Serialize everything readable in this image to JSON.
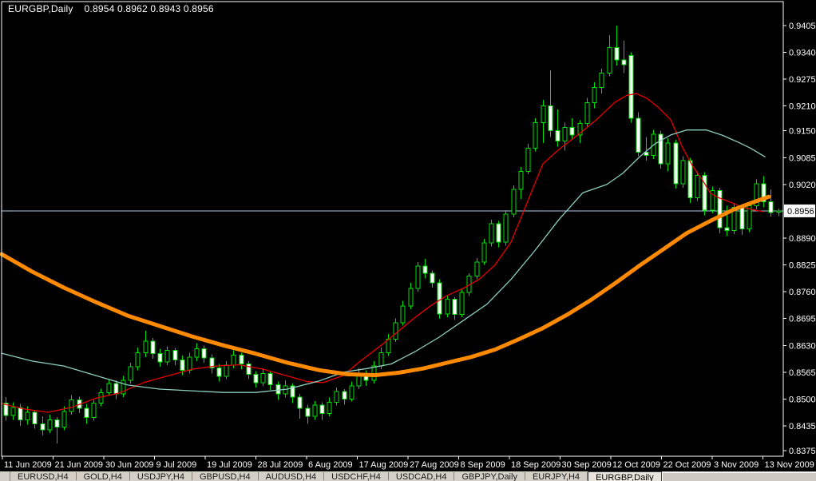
{
  "header": {
    "symbol_period": "EURGBP,Daily",
    "ohlc_quote": "0.8954 0.8962 0.8943 0.8956"
  },
  "colors": {
    "background": "#000000",
    "frame": "#FFFFFF",
    "axis_text": "#FFFFFF",
    "candle_outline": "#00E000",
    "bear_fill": "#FFFFFF",
    "bull_fill": "#000000",
    "ma_fast": "#E60000",
    "ma_mid": "#8CCFC0",
    "ma_slow": "#FF8A00",
    "current_price_line": "#ADC8E8",
    "price_flag_bg": "#FFFFFF",
    "price_flag_text": "#000000",
    "tabbar_bg": "#D4D0C8"
  },
  "y_axis": {
    "labels": [
      "0.9405",
      "0.9340",
      "0.9275",
      "0.9210",
      "0.9150",
      "0.9085",
      "0.9020",
      "0.8890",
      "0.8825",
      "0.8760",
      "0.8695",
      "0.8630",
      "0.8565",
      "0.8500",
      "0.8435",
      "0.8375"
    ],
    "current_price_label": "0.8956"
  },
  "x_axis": {
    "labels": [
      "11 Jun 2009",
      "21 Jun 2009",
      "30 Jun 2009",
      "9 Jul 2009",
      "19 Jul 2009",
      "28 Jul 2009",
      "6 Aug 2009",
      "17 Aug 2009",
      "27 Aug 2009",
      "8 Sep 2009",
      "18 Sep 2009",
      "30 Sep 2009",
      "12 Oct 2009",
      "22 Oct 2009",
      "3 Nov 2009",
      "13 Nov 2009"
    ]
  },
  "tabs": {
    "items": [
      {
        "label": "EURUSD,H4",
        "active": false
      },
      {
        "label": "GOLD,H4",
        "active": false
      },
      {
        "label": "USDJPY,H4",
        "active": false
      },
      {
        "label": "GBPUSD,H4",
        "active": false
      },
      {
        "label": "AUDUSD,H4",
        "active": false
      },
      {
        "label": "USDCHF,H4",
        "active": false
      },
      {
        "label": "USDCAD,H4",
        "active": false
      },
      {
        "label": "GBPJPY,Daily",
        "active": false
      },
      {
        "label": "EURJPY,H4",
        "active": false
      },
      {
        "label": "EURGBP,Daily",
        "active": true
      }
    ]
  },
  "chart_data": {
    "type": "candlestick",
    "symbol": "EURGBP",
    "timeframe": "Daily",
    "title": "EURGBP,Daily",
    "last_quote": {
      "open": 0.8954,
      "high": 0.8962,
      "low": 0.8943,
      "close": 0.8956
    },
    "current_price": 0.8956,
    "ylim": [
      0.8375,
      0.9405
    ],
    "y_ticks": [
      0.9405,
      0.934,
      0.9275,
      0.921,
      0.915,
      0.9085,
      0.902,
      0.889,
      0.8825,
      0.876,
      0.8695,
      0.863,
      0.8565,
      0.85,
      0.8435,
      0.8375
    ],
    "x_tick_labels": [
      "11 Jun 2009",
      "21 Jun 2009",
      "30 Jun 2009",
      "9 Jul 2009",
      "19 Jul 2009",
      "28 Jul 2009",
      "6 Aug 2009",
      "17 Aug 2009",
      "27 Aug 2009",
      "8 Sep 2009",
      "18 Sep 2009",
      "30 Sep 2009",
      "12 Oct 2009",
      "22 Oct 2009",
      "3 Nov 2009",
      "13 Nov 2009"
    ],
    "grid": false,
    "ohlc": [
      [
        0.849,
        0.8505,
        0.8448,
        0.846
      ],
      [
        0.846,
        0.8492,
        0.845,
        0.848
      ],
      [
        0.848,
        0.8488,
        0.8435,
        0.845
      ],
      [
        0.845,
        0.8482,
        0.8438,
        0.8468
      ],
      [
        0.8468,
        0.8474,
        0.8428,
        0.844
      ],
      [
        0.844,
        0.8458,
        0.8412,
        0.8425
      ],
      [
        0.8425,
        0.8462,
        0.8418,
        0.845
      ],
      [
        0.845,
        0.8456,
        0.8392,
        0.8432
      ],
      [
        0.8432,
        0.8482,
        0.8424,
        0.847
      ],
      [
        0.847,
        0.851,
        0.8462,
        0.8498
      ],
      [
        0.8498,
        0.8506,
        0.8466,
        0.8478
      ],
      [
        0.8478,
        0.8488,
        0.844,
        0.8455
      ],
      [
        0.8455,
        0.8498,
        0.8448,
        0.849
      ],
      [
        0.849,
        0.8525,
        0.8482,
        0.8515
      ],
      [
        0.8515,
        0.8548,
        0.8508,
        0.8538
      ],
      [
        0.8538,
        0.8545,
        0.85,
        0.8512
      ],
      [
        0.8512,
        0.8556,
        0.8505,
        0.8545
      ],
      [
        0.8545,
        0.8588,
        0.8538,
        0.8578
      ],
      [
        0.8578,
        0.8625,
        0.857,
        0.8612
      ],
      [
        0.8612,
        0.8665,
        0.8602,
        0.864
      ],
      [
        0.864,
        0.8648,
        0.8598,
        0.861
      ],
      [
        0.861,
        0.8622,
        0.8578,
        0.859
      ],
      [
        0.859,
        0.8628,
        0.8582,
        0.8618
      ],
      [
        0.8618,
        0.8624,
        0.8582,
        0.8595
      ],
      [
        0.8595,
        0.8605,
        0.8558,
        0.857
      ],
      [
        0.857,
        0.8612,
        0.8562,
        0.8602
      ],
      [
        0.8602,
        0.8635,
        0.8592,
        0.8622
      ],
      [
        0.8622,
        0.863,
        0.8588,
        0.86
      ],
      [
        0.86,
        0.8608,
        0.8562,
        0.8575
      ],
      [
        0.8575,
        0.8585,
        0.8542,
        0.8555
      ],
      [
        0.8555,
        0.8592,
        0.8548,
        0.8582
      ],
      [
        0.8582,
        0.8618,
        0.8574,
        0.8606
      ],
      [
        0.8606,
        0.8612,
        0.8572,
        0.8585
      ],
      [
        0.8585,
        0.8592,
        0.8548,
        0.856
      ],
      [
        0.856,
        0.8568,
        0.8528,
        0.854
      ],
      [
        0.854,
        0.8574,
        0.8532,
        0.8562
      ],
      [
        0.8562,
        0.8568,
        0.8522,
        0.8535
      ],
      [
        0.8535,
        0.8542,
        0.8498,
        0.8512
      ],
      [
        0.8512,
        0.8545,
        0.8504,
        0.8532
      ],
      [
        0.8532,
        0.8538,
        0.849,
        0.8505
      ],
      [
        0.8505,
        0.8512,
        0.8452,
        0.8478
      ],
      [
        0.8478,
        0.8486,
        0.844,
        0.8458
      ],
      [
        0.8458,
        0.8495,
        0.845,
        0.8485
      ],
      [
        0.8485,
        0.8492,
        0.845,
        0.8465
      ],
      [
        0.8465,
        0.8504,
        0.8458,
        0.8492
      ],
      [
        0.8492,
        0.8528,
        0.8484,
        0.8518
      ],
      [
        0.8518,
        0.8524,
        0.8486,
        0.85
      ],
      [
        0.85,
        0.8542,
        0.8494,
        0.8532
      ],
      [
        0.8532,
        0.8575,
        0.8524,
        0.8562
      ],
      [
        0.8562,
        0.857,
        0.8532,
        0.8545
      ],
      [
        0.8545,
        0.8592,
        0.8538,
        0.858
      ],
      [
        0.858,
        0.8625,
        0.8572,
        0.8612
      ],
      [
        0.8612,
        0.8658,
        0.8604,
        0.8645
      ],
      [
        0.8645,
        0.8695,
        0.8638,
        0.8685
      ],
      [
        0.8685,
        0.8738,
        0.8678,
        0.8725
      ],
      [
        0.8725,
        0.8782,
        0.8718,
        0.8768
      ],
      [
        0.8768,
        0.8832,
        0.876,
        0.8822
      ],
      [
        0.8822,
        0.884,
        0.8792,
        0.8805
      ],
      [
        0.8805,
        0.8812,
        0.877,
        0.8782
      ],
      [
        0.8782,
        0.879,
        0.8694,
        0.8706
      ],
      [
        0.8706,
        0.8752,
        0.8698,
        0.8742
      ],
      [
        0.8742,
        0.8748,
        0.8692,
        0.8705
      ],
      [
        0.8705,
        0.8768,
        0.8698,
        0.8758
      ],
      [
        0.8758,
        0.8805,
        0.875,
        0.8798
      ],
      [
        0.8798,
        0.8842,
        0.879,
        0.8832
      ],
      [
        0.8832,
        0.8888,
        0.8825,
        0.8878
      ],
      [
        0.8878,
        0.8935,
        0.887,
        0.8925
      ],
      [
        0.8925,
        0.8932,
        0.8868,
        0.888
      ],
      [
        0.888,
        0.8958,
        0.8872,
        0.8948
      ],
      [
        0.8948,
        0.9018,
        0.894,
        0.9008
      ],
      [
        0.9008,
        0.9062,
        0.8985,
        0.9052
      ],
      [
        0.9052,
        0.9118,
        0.9045,
        0.9108
      ],
      [
        0.9108,
        0.918,
        0.91,
        0.917
      ],
      [
        0.917,
        0.9225,
        0.912,
        0.921
      ],
      [
        0.921,
        0.9297,
        0.9135,
        0.915
      ],
      [
        0.915,
        0.9202,
        0.9112,
        0.9125
      ],
      [
        0.9125,
        0.917,
        0.9102,
        0.9158
      ],
      [
        0.9158,
        0.918,
        0.9128,
        0.914
      ],
      [
        0.914,
        0.9176,
        0.912,
        0.9168
      ],
      [
        0.9168,
        0.923,
        0.916,
        0.9218
      ],
      [
        0.9218,
        0.9268,
        0.9205,
        0.9255
      ],
      [
        0.9255,
        0.93,
        0.924,
        0.929
      ],
      [
        0.929,
        0.9382,
        0.9282,
        0.9352
      ],
      [
        0.9352,
        0.9405,
        0.9308,
        0.9322
      ],
      [
        0.9322,
        0.9368,
        0.929,
        0.931
      ],
      [
        0.9332,
        0.934,
        0.917,
        0.918
      ],
      [
        0.918,
        0.9195,
        0.9088,
        0.9098
      ],
      [
        0.9098,
        0.9135,
        0.9078,
        0.909
      ],
      [
        0.909,
        0.9152,
        0.9082,
        0.9142
      ],
      [
        0.9142,
        0.915,
        0.9058,
        0.907
      ],
      [
        0.907,
        0.9132,
        0.9052,
        0.912
      ],
      [
        0.912,
        0.9128,
        0.901,
        0.9022
      ],
      [
        0.9022,
        0.9088,
        0.9012,
        0.9078
      ],
      [
        0.9078,
        0.9085,
        0.8975,
        0.8988
      ],
      [
        0.8988,
        0.9052,
        0.898,
        0.9042
      ],
      [
        0.9042,
        0.905,
        0.8945,
        0.8958
      ],
      [
        0.8958,
        0.9015,
        0.895,
        0.9005
      ],
      [
        0.9005,
        0.9012,
        0.8902,
        0.8915
      ],
      [
        0.8915,
        0.8968,
        0.8895,
        0.8908
      ],
      [
        0.8908,
        0.8975,
        0.89,
        0.8965
      ],
      [
        0.8965,
        0.8972,
        0.8898,
        0.8912
      ],
      [
        0.8912,
        0.8978,
        0.8905,
        0.8968
      ],
      [
        0.8968,
        0.9032,
        0.896,
        0.9022
      ],
      [
        0.9022,
        0.904,
        0.8965,
        0.8978
      ],
      [
        0.8978,
        0.9008,
        0.8942,
        0.8952
      ],
      [
        0.8954,
        0.8962,
        0.8943,
        0.8956
      ]
    ],
    "overlays": [
      {
        "name": "ma-fast-red",
        "color": "#E60000",
        "width": 1.3,
        "points": [
          [
            2,
            0.8489
          ],
          [
            30,
            0.8476
          ],
          [
            60,
            0.8468
          ],
          [
            90,
            0.848
          ],
          [
            120,
            0.8502
          ],
          [
            150,
            0.8515
          ],
          [
            180,
            0.854
          ],
          [
            210,
            0.8556
          ],
          [
            240,
            0.8572
          ],
          [
            270,
            0.858
          ],
          [
            300,
            0.8583
          ],
          [
            330,
            0.8572
          ],
          [
            360,
            0.8556
          ],
          [
            385,
            0.8542
          ],
          [
            405,
            0.854
          ],
          [
            430,
            0.8557
          ],
          [
            450,
            0.859
          ],
          [
            480,
            0.8634
          ],
          [
            520,
            0.8698
          ],
          [
            540,
            0.8727
          ],
          [
            560,
            0.8751
          ],
          [
            580,
            0.8768
          ],
          [
            600,
            0.879
          ],
          [
            620,
            0.8825
          ],
          [
            640,
            0.888
          ],
          [
            660,
            0.8975
          ],
          [
            680,
            0.907
          ],
          [
            700,
            0.9105
          ],
          [
            713,
            0.9124
          ],
          [
            730,
            0.915
          ],
          [
            747,
            0.9177
          ],
          [
            770,
            0.9219
          ],
          [
            785,
            0.9236
          ],
          [
            797,
            0.924
          ],
          [
            810,
            0.9229
          ],
          [
            825,
            0.9206
          ],
          [
            840,
            0.9177
          ],
          [
            855,
            0.9109
          ],
          [
            867,
            0.9066
          ],
          [
            880,
            0.903
          ],
          [
            890,
            0.8998
          ],
          [
            900,
            0.8988
          ],
          [
            915,
            0.8977
          ],
          [
            930,
            0.8965
          ],
          [
            945,
            0.8958
          ],
          [
            956,
            0.8954
          ]
        ]
      },
      {
        "name": "ma-mid-teal",
        "color": "#8CCFC0",
        "width": 1.3,
        "points": [
          [
            2,
            0.8611
          ],
          [
            40,
            0.8592
          ],
          [
            80,
            0.858
          ],
          [
            120,
            0.8557
          ],
          [
            160,
            0.8534
          ],
          [
            200,
            0.8524
          ],
          [
            240,
            0.852
          ],
          [
            280,
            0.8516
          ],
          [
            320,
            0.8516
          ],
          [
            360,
            0.8524
          ],
          [
            400,
            0.8544
          ],
          [
            430,
            0.8565
          ],
          [
            460,
            0.8574
          ],
          [
            490,
            0.8585
          ],
          [
            520,
            0.8615
          ],
          [
            550,
            0.865
          ],
          [
            580,
            0.869
          ],
          [
            610,
            0.873
          ],
          [
            640,
            0.879
          ],
          [
            670,
            0.886
          ],
          [
            700,
            0.8935
          ],
          [
            730,
            0.9
          ],
          [
            760,
            0.902
          ],
          [
            780,
            0.9047
          ],
          [
            800,
            0.9085
          ],
          [
            820,
            0.9118
          ],
          [
            840,
            0.914
          ],
          [
            860,
            0.9152
          ],
          [
            885,
            0.9152
          ],
          [
            905,
            0.9139
          ],
          [
            925,
            0.9122
          ],
          [
            940,
            0.9108
          ],
          [
            958,
            0.9087
          ]
        ]
      },
      {
        "name": "ma-slow-orange",
        "color": "#FF8A00",
        "width": 5,
        "points": [
          [
            2,
            0.8851
          ],
          [
            40,
            0.8809
          ],
          [
            80,
            0.877
          ],
          [
            120,
            0.8735
          ],
          [
            160,
            0.8702
          ],
          [
            200,
            0.8677
          ],
          [
            240,
            0.8652
          ],
          [
            280,
            0.863
          ],
          [
            320,
            0.861
          ],
          [
            360,
            0.8588
          ],
          [
            400,
            0.857
          ],
          [
            435,
            0.856
          ],
          [
            470,
            0.8558
          ],
          [
            500,
            0.8564
          ],
          [
            530,
            0.8574
          ],
          [
            560,
            0.8588
          ],
          [
            590,
            0.8602
          ],
          [
            620,
            0.862
          ],
          [
            650,
            0.8645
          ],
          [
            680,
            0.8672
          ],
          [
            710,
            0.8704
          ],
          [
            740,
            0.874
          ],
          [
            770,
            0.878
          ],
          [
            800,
            0.8822
          ],
          [
            830,
            0.8862
          ],
          [
            860,
            0.8902
          ],
          [
            890,
            0.8932
          ],
          [
            920,
            0.896
          ],
          [
            945,
            0.8978
          ],
          [
            963,
            0.899
          ]
        ]
      }
    ]
  }
}
